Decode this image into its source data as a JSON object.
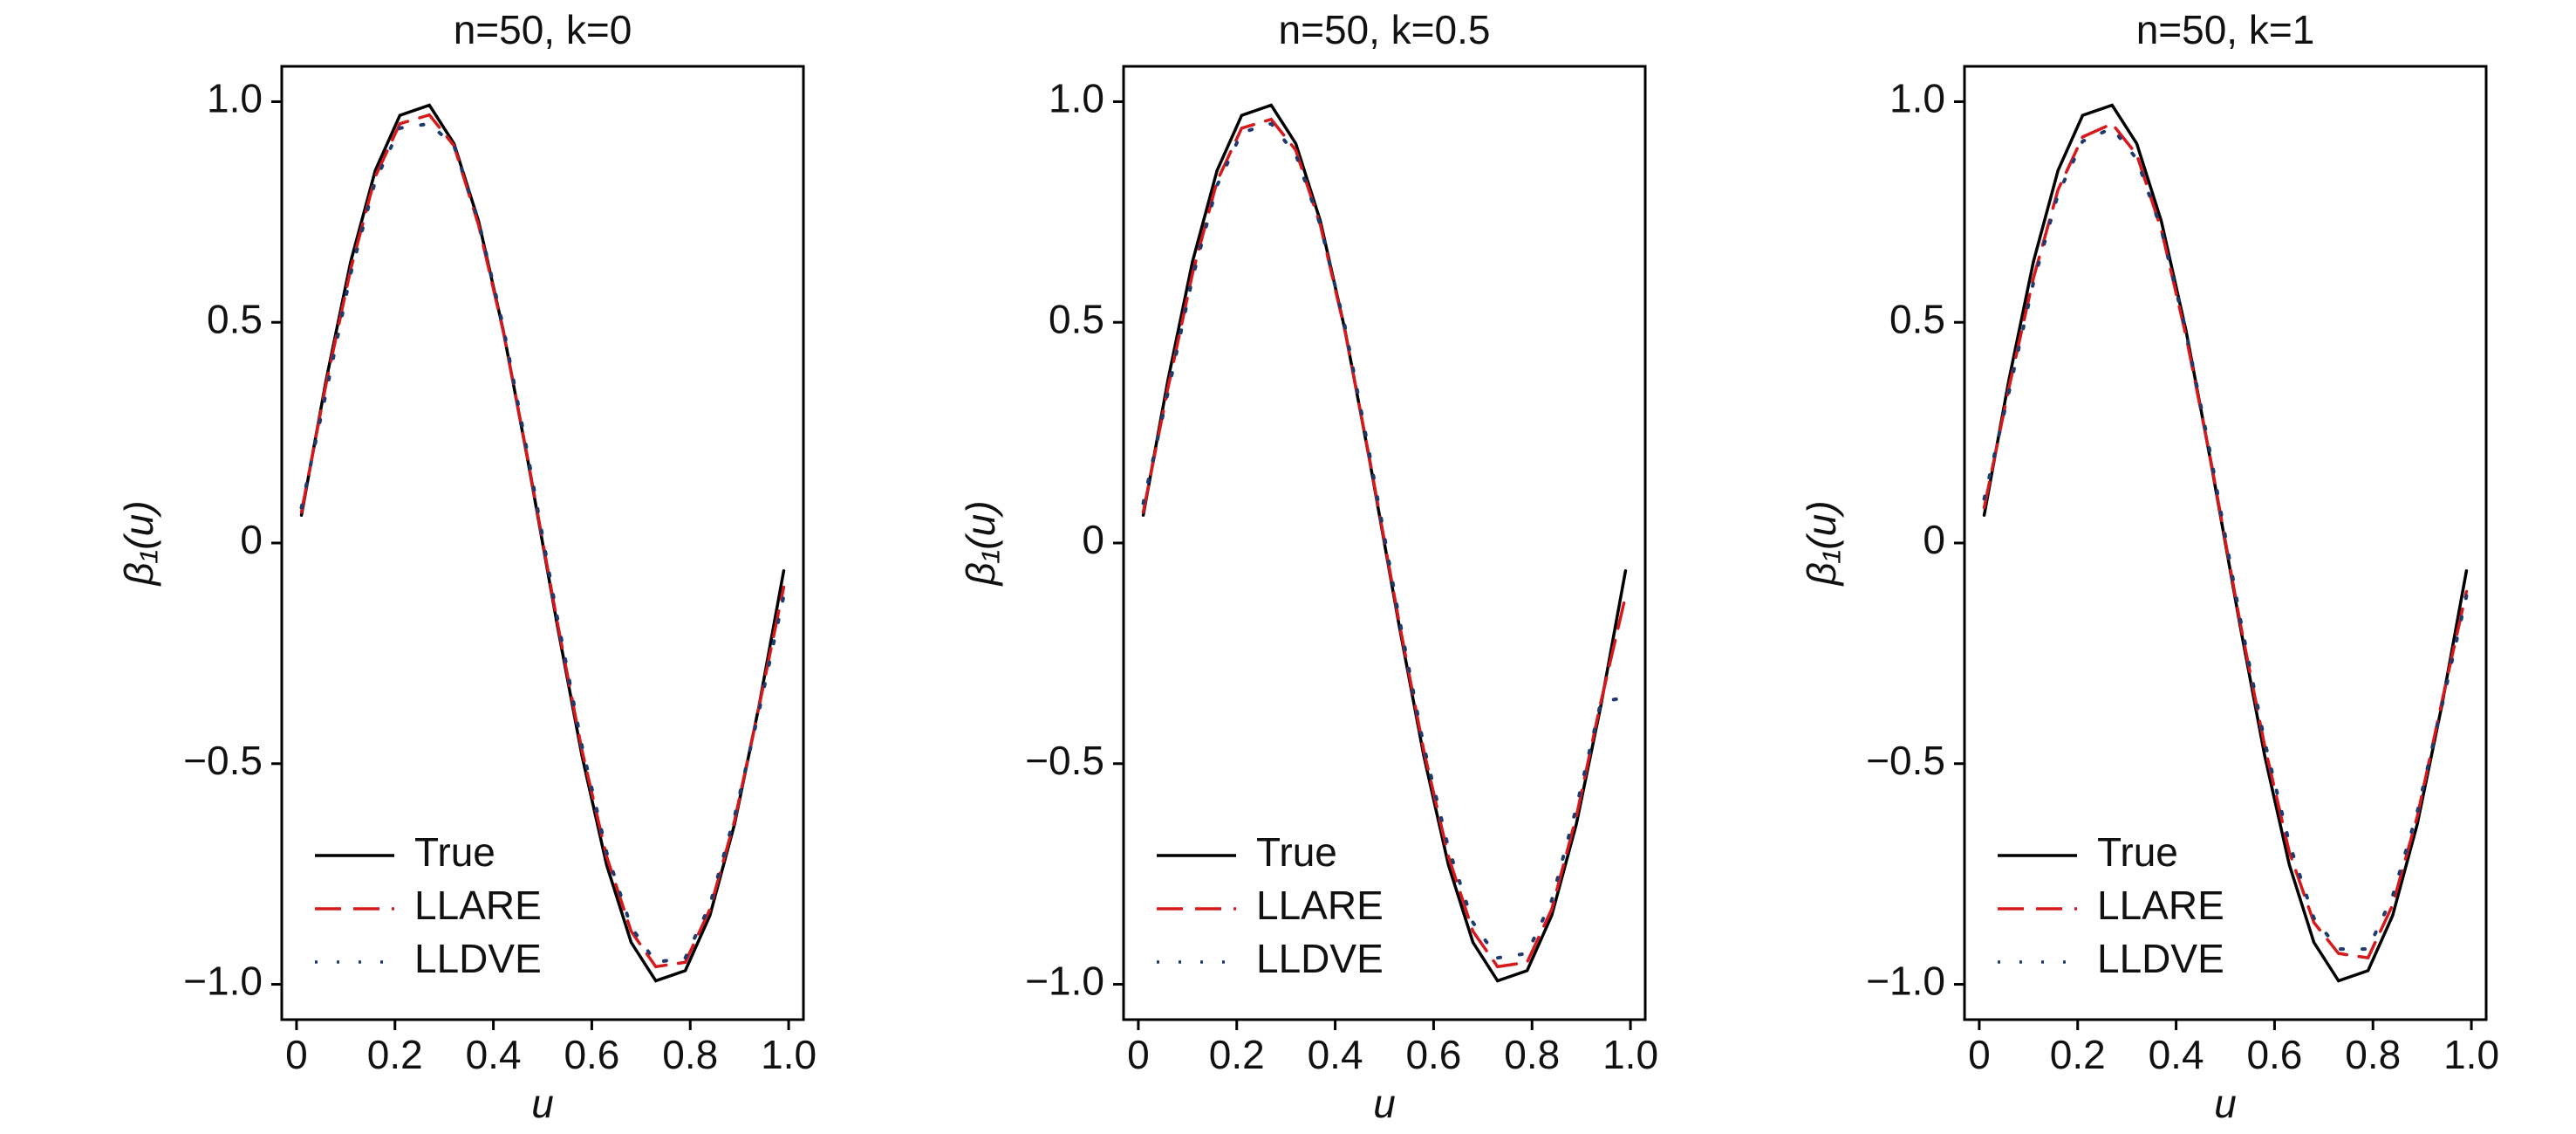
{
  "chart_data": [
    {
      "type": "line",
      "title": "n=50, k=0",
      "xlabel": "u",
      "ylabel": "β₁(u)",
      "x": [
        0.01,
        0.06,
        0.11,
        0.16,
        0.21,
        0.27,
        0.32,
        0.37,
        0.42,
        0.47,
        0.53,
        0.58,
        0.63,
        0.68,
        0.73,
        0.79,
        0.84,
        0.89,
        0.94,
        0.99
      ],
      "series": [
        {
          "name": "True",
          "color": "#000000",
          "dash": "solid",
          "values": [
            0.063,
            0.368,
            0.637,
            0.844,
            0.969,
            0.992,
            0.905,
            0.729,
            0.482,
            0.187,
            -0.187,
            -0.482,
            -0.729,
            -0.905,
            -0.992,
            -0.969,
            -0.844,
            -0.637,
            -0.368,
            -0.063
          ]
        },
        {
          "name": "LLARE",
          "color": "#d7191c",
          "dash": "dashed",
          "values": [
            0.07,
            0.36,
            0.62,
            0.83,
            0.95,
            0.97,
            0.9,
            0.72,
            0.48,
            0.19,
            -0.18,
            -0.47,
            -0.71,
            -0.88,
            -0.96,
            -0.95,
            -0.83,
            -0.63,
            -0.37,
            -0.1
          ]
        },
        {
          "name": "LLDVE",
          "color": "#1f3a6e",
          "dash": "dotted",
          "values": [
            0.08,
            0.34,
            0.61,
            0.82,
            0.94,
            0.95,
            0.9,
            0.73,
            0.49,
            0.2,
            -0.17,
            -0.46,
            -0.7,
            -0.87,
            -0.95,
            -0.94,
            -0.82,
            -0.62,
            -0.38,
            -0.12
          ]
        }
      ],
      "xlim": [
        -0.03,
        1.03
      ],
      "ylim": [
        -1.08,
        1.08
      ],
      "xticks": [
        0,
        0.2,
        0.4,
        0.6,
        0.8,
        {
          "value": 1,
          "label": "1.0"
        }
      ],
      "yticks": [
        {
          "value": -1,
          "label": "−1.0"
        },
        {
          "value": -0.5,
          "label": "−0.5"
        },
        0,
        0.5,
        {
          "value": 1,
          "label": "1.0"
        }
      ],
      "legend": "lower left"
    },
    {
      "type": "line",
      "title": "n=50, k=0.5",
      "xlabel": "u",
      "ylabel": "β₁(u)",
      "x": [
        0.01,
        0.06,
        0.11,
        0.16,
        0.21,
        0.27,
        0.32,
        0.37,
        0.42,
        0.47,
        0.53,
        0.58,
        0.63,
        0.68,
        0.73,
        0.79,
        0.84,
        0.89,
        0.94,
        0.99
      ],
      "series": [
        {
          "name": "True",
          "color": "#000000",
          "dash": "solid",
          "values": [
            0.063,
            0.368,
            0.637,
            0.844,
            0.969,
            0.992,
            0.905,
            0.729,
            0.482,
            0.187,
            -0.187,
            -0.482,
            -0.729,
            -0.905,
            -0.992,
            -0.969,
            -0.844,
            -0.637,
            -0.368,
            -0.063
          ]
        },
        {
          "name": "LLARE",
          "color": "#d7191c",
          "dash": "dashed",
          "values": [
            0.07,
            0.35,
            0.61,
            0.82,
            0.94,
            0.96,
            0.89,
            0.72,
            0.48,
            0.19,
            -0.18,
            -0.47,
            -0.71,
            -0.88,
            -0.96,
            -0.95,
            -0.83,
            -0.62,
            -0.36,
            -0.12
          ]
        },
        {
          "name": "LLDVE",
          "color": "#1f3a6e",
          "dash": "dotted",
          "values": [
            0.09,
            0.34,
            0.6,
            0.81,
            0.93,
            0.95,
            0.88,
            0.72,
            0.49,
            0.2,
            -0.17,
            -0.46,
            -0.69,
            -0.86,
            -0.94,
            -0.93,
            -0.81,
            -0.6,
            -0.36,
            -0.35
          ]
        }
      ],
      "xlim": [
        -0.03,
        1.03
      ],
      "ylim": [
        -1.08,
        1.08
      ],
      "xticks": [
        0,
        0.2,
        0.4,
        0.6,
        0.8,
        {
          "value": 1,
          "label": "1.0"
        }
      ],
      "yticks": [
        {
          "value": -1,
          "label": "−1.0"
        },
        {
          "value": -0.5,
          "label": "−0.5"
        },
        0,
        0.5,
        {
          "value": 1,
          "label": "1.0"
        }
      ],
      "legend": "lower left"
    },
    {
      "type": "line",
      "title": "n=50, k=1",
      "xlabel": "u",
      "ylabel": "β₁(u)",
      "x": [
        0.01,
        0.06,
        0.11,
        0.16,
        0.21,
        0.27,
        0.32,
        0.37,
        0.42,
        0.47,
        0.53,
        0.58,
        0.63,
        0.68,
        0.73,
        0.79,
        0.84,
        0.89,
        0.94,
        0.99
      ],
      "series": [
        {
          "name": "True",
          "color": "#000000",
          "dash": "solid",
          "values": [
            0.063,
            0.368,
            0.637,
            0.844,
            0.969,
            0.992,
            0.905,
            0.729,
            0.482,
            0.187,
            -0.187,
            -0.482,
            -0.729,
            -0.905,
            -0.992,
            -0.969,
            -0.844,
            -0.637,
            -0.368,
            -0.063
          ]
        },
        {
          "name": "LLARE",
          "color": "#d7191c",
          "dash": "dashed",
          "values": [
            0.08,
            0.35,
            0.6,
            0.8,
            0.92,
            0.95,
            0.88,
            0.71,
            0.47,
            0.19,
            -0.18,
            -0.46,
            -0.7,
            -0.86,
            -0.93,
            -0.94,
            -0.82,
            -0.62,
            -0.36,
            -0.11
          ]
        },
        {
          "name": "LLDVE",
          "color": "#1f3a6e",
          "dash": "dotted",
          "values": [
            0.1,
            0.34,
            0.59,
            0.79,
            0.91,
            0.94,
            0.87,
            0.71,
            0.48,
            0.2,
            -0.17,
            -0.45,
            -0.68,
            -0.85,
            -0.92,
            -0.92,
            -0.8,
            -0.61,
            -0.37,
            -0.12
          ]
        }
      ],
      "xlim": [
        -0.03,
        1.03
      ],
      "ylim": [
        -1.08,
        1.08
      ],
      "xticks": [
        0,
        0.2,
        0.4,
        0.6,
        0.8,
        {
          "value": 1,
          "label": "1.0"
        }
      ],
      "yticks": [
        {
          "value": -1,
          "label": "−1.0"
        },
        {
          "value": -0.5,
          "label": "−0.5"
        },
        0,
        0.5,
        {
          "value": 1,
          "label": "1.0"
        }
      ],
      "legend": "lower left"
    }
  ]
}
